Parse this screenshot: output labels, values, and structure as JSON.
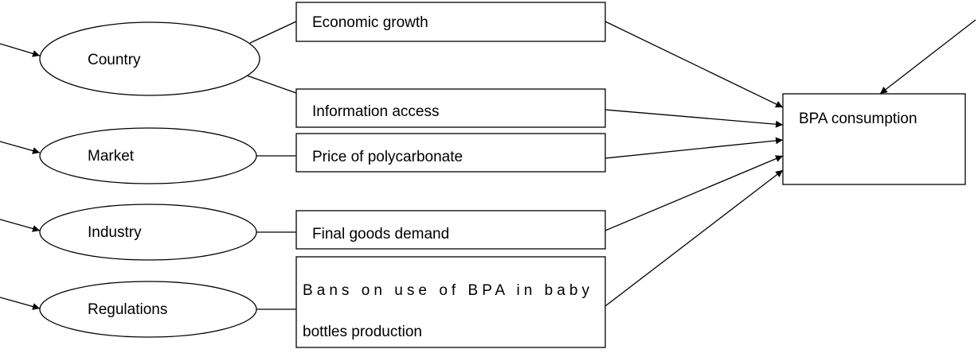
{
  "ellipses": [
    {
      "label": "Country"
    },
    {
      "label": "Market"
    },
    {
      "label": "Industry"
    },
    {
      "label": "Regulations"
    }
  ],
  "factors": [
    {
      "lines": [
        "Economic growth"
      ]
    },
    {
      "lines": [
        "Information access"
      ]
    },
    {
      "lines": [
        "Price of polycarbonate"
      ]
    },
    {
      "lines": [
        "Final goods demand"
      ]
    },
    {
      "lines": [
        "Bans on use of BPA in baby",
        "bottles production"
      ]
    }
  ],
  "outcome": {
    "label": "BPA consumption"
  }
}
